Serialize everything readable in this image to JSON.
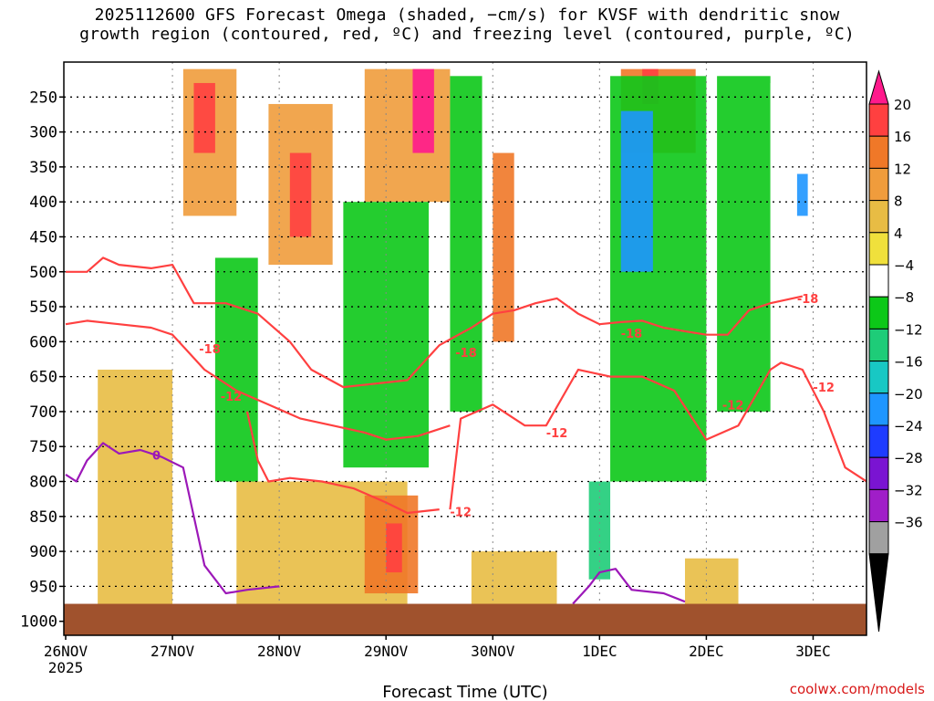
{
  "chart_data": {
    "type": "heatmap",
    "title_line1": "2025112600 GFS Forecast Omega (shaded, −cm/s) for KVSF with dendritic snow",
    "title_line2": "growth region (contoured, red, ºC) and freezing level (contoured, purple, ºC)",
    "xlabel": "Forecast Time (UTC)",
    "ylabel": "Pressure (hPa)",
    "y_ticks": [
      250,
      300,
      350,
      400,
      450,
      500,
      550,
      600,
      650,
      700,
      750,
      800,
      850,
      900,
      950,
      1000
    ],
    "ylim": [
      1020,
      200
    ],
    "x_ticks": [
      {
        "day": 0,
        "label": "26NOV",
        "sub": "2025"
      },
      {
        "day": 1,
        "label": "27NOV",
        "sub": ""
      },
      {
        "day": 2,
        "label": "28NOV",
        "sub": ""
      },
      {
        "day": 3,
        "label": "29NOV",
        "sub": ""
      },
      {
        "day": 4,
        "label": "30NOV",
        "sub": ""
      },
      {
        "day": 5,
        "label": "1DEC",
        "sub": ""
      },
      {
        "day": 6,
        "label": "2DEC",
        "sub": ""
      },
      {
        "day": 7,
        "label": "3DEC",
        "sub": ""
      }
    ],
    "xlim_days": [
      0,
      7.5
    ],
    "colorbar": {
      "levels": [
        "20",
        "16",
        "12",
        "8",
        "4",
        "−4",
        "−8",
        "−12",
        "−16",
        "−20",
        "−24",
        "−28",
        "−32",
        "−36"
      ],
      "colors": [
        "#ff1a8c",
        "#ff4040",
        "#f07828",
        "#f09c3c",
        "#e8bc44",
        "#f0e03c",
        "#ffffff",
        "#0cc818",
        "#1ecc78",
        "#18c8c4",
        "#1e96ff",
        "#1e3cff",
        "#7a14d2",
        "#a01ec8",
        "#a0a0a0",
        "#000000"
      ]
    },
    "series": [
      {
        "name": "-18 isotherm (upper)",
        "color": "#ff4040",
        "x": [
          0,
          0.2,
          0.35,
          0.5,
          0.8,
          1.0,
          1.2,
          1.5,
          1.8,
          2.1,
          2.3,
          2.6,
          2.9,
          3.2,
          3.5,
          3.8,
          4.0,
          4.2,
          4.4,
          4.6,
          4.8,
          5.0,
          5.2,
          5.4,
          5.6,
          5.8,
          6.0,
          6.2,
          6.4,
          6.6,
          6.9
        ],
        "p": [
          500,
          500,
          480,
          490,
          495,
          490,
          545,
          545,
          560,
          600,
          640,
          665,
          660,
          655,
          605,
          580,
          560,
          555,
          545,
          538,
          560,
          575,
          572,
          570,
          580,
          585,
          590,
          590,
          555,
          545,
          535
        ]
      },
      {
        "name": "-18 isotherm (lower)",
        "color": "#ff4040",
        "x": [
          0,
          0.2,
          0.5,
          0.8,
          1.0,
          1.3,
          1.6,
          1.9,
          2.2,
          2.5,
          2.8,
          3.0,
          3.3,
          3.6
        ],
        "p": [
          575,
          570,
          575,
          580,
          590,
          640,
          670,
          690,
          710,
          720,
          730,
          740,
          735,
          720
        ]
      },
      {
        "name": "-12 isotherm (west)",
        "color": "#ff4040",
        "x": [
          1.7,
          1.8,
          1.9,
          2.1,
          2.4,
          2.7,
          3.0,
          3.2,
          3.5
        ],
        "p": [
          700,
          770,
          800,
          795,
          800,
          810,
          830,
          845,
          840
        ]
      },
      {
        "name": "-12 isotherm (east)",
        "color": "#ff4040",
        "x": [
          3.6,
          3.7,
          4.0,
          4.3,
          4.5,
          4.8,
          5.1,
          5.4,
          5.7,
          6.0,
          6.3,
          6.6,
          6.7,
          6.9,
          7.1,
          7.3,
          7.5
        ],
        "p": [
          840,
          710,
          690,
          720,
          720,
          640,
          650,
          650,
          670,
          740,
          720,
          640,
          630,
          640,
          700,
          780,
          800
        ]
      },
      {
        "name": "0 freezing level (west)",
        "color": "#9c18b8",
        "x": [
          0,
          0.1,
          0.2,
          0.35,
          0.5,
          0.7,
          0.9,
          1.1,
          1.2,
          1.3,
          1.5,
          1.7,
          2.0
        ],
        "p": [
          790,
          800,
          770,
          745,
          760,
          755,
          765,
          780,
          850,
          920,
          960,
          955,
          950
        ]
      },
      {
        "name": "0 freezing level (east)",
        "color": "#9c18b8",
        "x": [
          4.75,
          4.9,
          5.0,
          5.15,
          5.3,
          5.6,
          5.8
        ],
        "p": [
          975,
          950,
          930,
          925,
          955,
          960,
          972
        ]
      }
    ],
    "contour_labels": [
      {
        "text": "-18",
        "x": 1.35,
        "p": 610
      },
      {
        "text": "-18",
        "x": 3.75,
        "p": 615
      },
      {
        "text": "-18",
        "x": 5.3,
        "p": 588
      },
      {
        "text": "-18",
        "x": 6.95,
        "p": 538
      },
      {
        "text": "-12",
        "x": 1.55,
        "p": 678
      },
      {
        "text": "-12",
        "x": 3.7,
        "p": 843
      },
      {
        "text": "-12",
        "x": 4.6,
        "p": 730
      },
      {
        "text": "-12",
        "x": 6.25,
        "p": 690
      },
      {
        "text": "-12",
        "x": 7.1,
        "p": 665
      },
      {
        "text": "0",
        "x": 0.85,
        "p": 762
      }
    ],
    "omega_cells": [
      {
        "x0": 1.1,
        "x1": 1.6,
        "p0": 210,
        "p1": 420,
        "v": 10
      },
      {
        "x0": 1.2,
        "x1": 1.4,
        "p0": 230,
        "p1": 330,
        "v": 18
      },
      {
        "x0": 1.9,
        "x1": 2.5,
        "p0": 260,
        "p1": 490,
        "v": 10
      },
      {
        "x0": 2.1,
        "x1": 2.3,
        "p0": 330,
        "p1": 450,
        "v": 18
      },
      {
        "x0": 2.8,
        "x1": 3.6,
        "p0": 210,
        "p1": 400,
        "v": 10
      },
      {
        "x0": 3.25,
        "x1": 3.45,
        "p0": 210,
        "p1": 330,
        "v": 20
      },
      {
        "x0": 4.0,
        "x1": 4.2,
        "p0": 330,
        "p1": 600,
        "v": 15
      },
      {
        "x0": 5.2,
        "x1": 5.9,
        "p0": 210,
        "p1": 330,
        "v": 12
      },
      {
        "x0": 5.4,
        "x1": 5.55,
        "p0": 210,
        "p1": 260,
        "v": 18
      },
      {
        "x0": 0.3,
        "x1": 1.0,
        "p0": 640,
        "p1": 990,
        "v": 4
      },
      {
        "x0": 1.6,
        "x1": 3.2,
        "p0": 800,
        "p1": 990,
        "v": 6
      },
      {
        "x0": 2.8,
        "x1": 3.3,
        "p0": 820,
        "p1": 960,
        "v": 12
      },
      {
        "x0": 3.0,
        "x1": 3.15,
        "p0": 860,
        "p1": 930,
        "v": 16
      },
      {
        "x0": 3.8,
        "x1": 4.6,
        "p0": 900,
        "p1": 990,
        "v": 5
      },
      {
        "x0": 5.8,
        "x1": 6.3,
        "p0": 910,
        "p1": 990,
        "v": 5
      },
      {
        "x0": 0.9,
        "x1": 1.1,
        "p0": 200,
        "p1": 450,
        "v": -7
      },
      {
        "x0": 1.4,
        "x1": 1.8,
        "p0": 480,
        "p1": 800,
        "v": -12
      },
      {
        "x0": 2.6,
        "x1": 3.4,
        "p0": 400,
        "p1": 780,
        "v": -10
      },
      {
        "x0": 3.6,
        "x1": 3.9,
        "p0": 220,
        "p1": 700,
        "v": -9
      },
      {
        "x0": 5.1,
        "x1": 6.0,
        "p0": 220,
        "p1": 800,
        "v": -12
      },
      {
        "x0": 5.2,
        "x1": 5.5,
        "p0": 270,
        "p1": 500,
        "v": -22
      },
      {
        "x0": 6.1,
        "x1": 6.6,
        "p0": 220,
        "p1": 700,
        "v": -10
      },
      {
        "x0": 6.6,
        "x1": 7.4,
        "p0": 230,
        "p1": 550,
        "v": -7
      },
      {
        "x0": 6.85,
        "x1": 6.95,
        "p0": 360,
        "p1": 420,
        "v": -22
      },
      {
        "x0": 0,
        "x1": 0.3,
        "p0": 450,
        "p1": 800,
        "v": -8
      },
      {
        "x0": 4.9,
        "x1": 5.1,
        "p0": 800,
        "p1": 940,
        "v": -13
      }
    ]
  },
  "credit": "coolwx.com/models"
}
